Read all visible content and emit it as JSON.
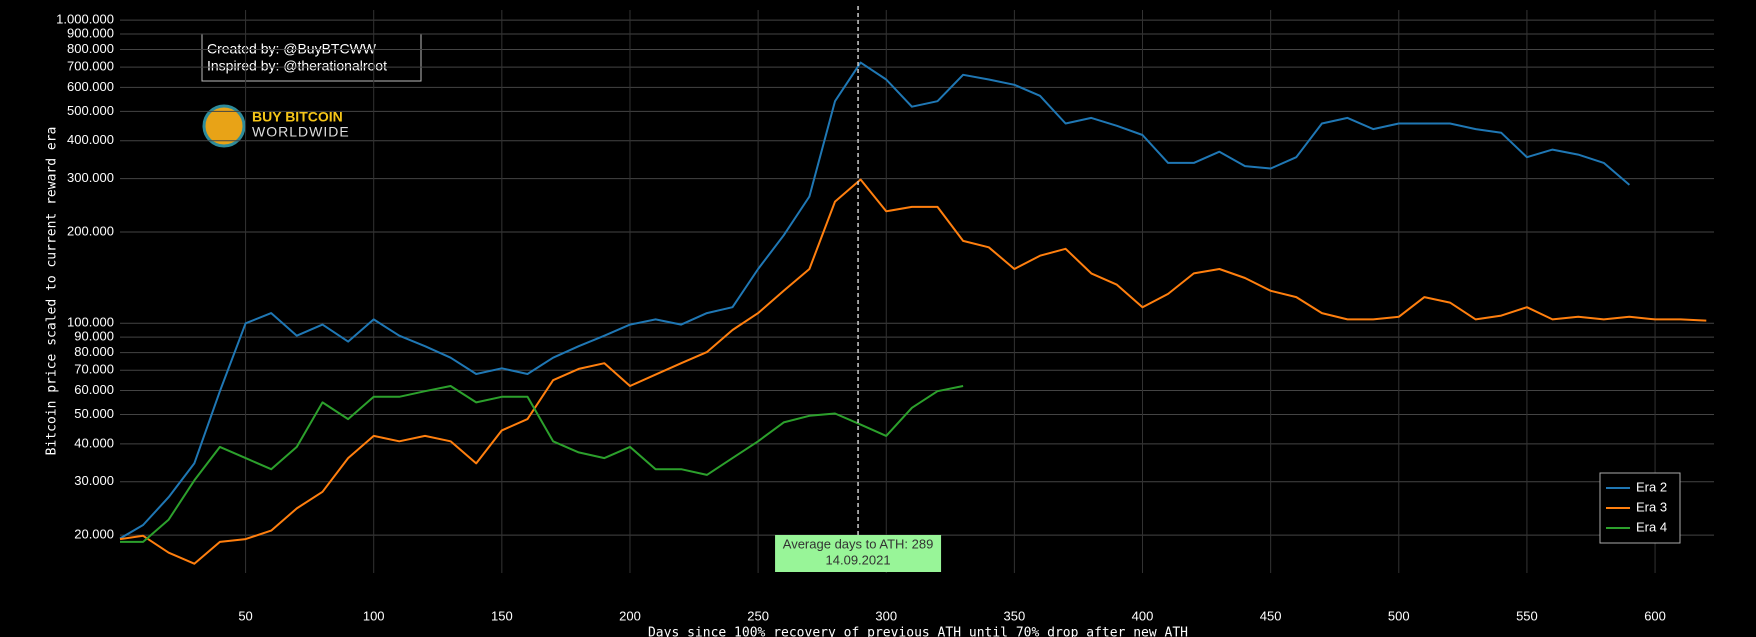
{
  "chart_data": {
    "type": "line",
    "x_label": "Days since 100% recovery of previous ATH until 70% drop after new ATH",
    "y_label": "Bitcoin price scaled to current reward era",
    "log_y": true,
    "grid": true,
    "legend": "bottom-right",
    "xlim": [
      1,
      623
    ],
    "ylim": [
      15000,
      1080000
    ],
    "xticks": [
      50,
      100,
      150,
      200,
      250,
      300,
      350,
      400,
      450,
      500,
      550,
      600
    ],
    "yticks": [
      {
        "value": 20000,
        "label": "20.000"
      },
      {
        "value": 30000,
        "label": "30.000"
      },
      {
        "value": 40000,
        "label": "40.000"
      },
      {
        "value": 50000,
        "label": "50.000"
      },
      {
        "value": 60000,
        "label": "60.000"
      },
      {
        "value": 70000,
        "label": "70.000"
      },
      {
        "value": 80000,
        "label": "80.000"
      },
      {
        "value": 90000,
        "label": "90.000"
      },
      {
        "value": 100000,
        "label": "100.000"
      },
      {
        "value": 200000,
        "label": "200.000"
      },
      {
        "value": 300000,
        "label": "300.000"
      },
      {
        "value": 400000,
        "label": "400.000"
      },
      {
        "value": 500000,
        "label": "500.000"
      },
      {
        "value": 600000,
        "label": "600.000"
      },
      {
        "value": 700000,
        "label": "700.000"
      },
      {
        "value": 800000,
        "label": "800.000"
      },
      {
        "value": 900000,
        "label": "900.000"
      },
      {
        "value": 1000000,
        "label": "1.000.000"
      }
    ],
    "x": [
      1,
      10,
      20,
      30,
      40,
      50,
      60,
      70,
      80,
      90,
      100,
      110,
      120,
      130,
      140,
      150,
      160,
      170,
      180,
      190,
      200,
      210,
      220,
      230,
      240,
      250,
      260,
      270,
      280,
      290,
      300,
      310,
      320,
      330,
      340,
      350,
      360,
      370,
      380,
      390,
      400,
      410,
      420,
      430,
      440,
      450,
      460,
      470,
      480,
      490,
      500,
      510,
      520,
      530,
      540,
      550,
      560,
      570,
      580,
      590,
      600,
      610,
      620
    ],
    "series": [
      {
        "name": "Era 2",
        "color": "#1f77b4",
        "values": [
          19500,
          21600,
          26700,
          34500,
          59700,
          100000,
          108000,
          91000,
          99000,
          87000,
          103000,
          91000,
          84000,
          77000,
          68000,
          71000,
          68000,
          77000,
          84000,
          91000,
          99000,
          103000,
          99000,
          108000,
          113000,
          151000,
          195000,
          262000,
          540000,
          724000,
          637000,
          518000,
          540000,
          660000,
          637000,
          612000,
          563000,
          456000,
          476000,
          448000,
          418000,
          338000,
          338000,
          368000,
          330000,
          324000,
          353000,
          456000,
          476000,
          437000,
          456000,
          456000,
          456000,
          437000,
          425000,
          353000,
          374000,
          360000,
          338000,
          286000,
          null,
          null,
          null
        ]
      },
      {
        "name": "Era 3",
        "color": "#ff7f0e",
        "values": [
          19400,
          19900,
          17500,
          16100,
          19000,
          19400,
          20700,
          24500,
          27800,
          35900,
          42500,
          40800,
          42500,
          40800,
          34500,
          44300,
          48300,
          64900,
          70700,
          73800,
          62100,
          67700,
          73800,
          80300,
          95000,
          108000,
          128000,
          151000,
          252000,
          298000,
          234000,
          242000,
          242000,
          187000,
          178000,
          151000,
          167000,
          176000,
          146000,
          134000,
          113000,
          125000,
          146000,
          151000,
          141000,
          128000,
          122000,
          108000,
          103000,
          103000,
          105000,
          122000,
          117000,
          103000,
          106000,
          113000,
          103000,
          105000,
          103000,
          105000,
          103000,
          103000,
          102000
        ]
      },
      {
        "name": "Era 4",
        "color": "#2ca02c",
        "values": [
          19000,
          19000,
          22500,
          30300,
          39100,
          35900,
          33000,
          39100,
          54800,
          48300,
          57200,
          57200,
          59700,
          62100,
          54800,
          57200,
          57200,
          40800,
          37500,
          35900,
          39100,
          33000,
          33000,
          31600,
          35900,
          40800,
          47100,
          49500,
          50400,
          46300,
          42500,
          52600,
          59700,
          62100,
          null,
          null,
          null,
          null,
          null,
          null,
          null,
          null,
          null,
          null,
          null,
          null,
          null,
          null,
          null,
          null,
          null,
          null,
          null,
          null,
          null,
          null,
          null,
          null,
          null,
          null,
          null,
          null,
          null
        ]
      }
    ],
    "annotations": {
      "credit": [
        "Created by: @BuyBTCWW",
        "Inspired by: @therationalroot"
      ],
      "logo": [
        "BUY BITCOIN",
        "WORLDWIDE"
      ],
      "ath_marker": {
        "x": 289,
        "label": [
          "Average days to ATH: 289",
          "14.09.2021"
        ]
      }
    }
  }
}
